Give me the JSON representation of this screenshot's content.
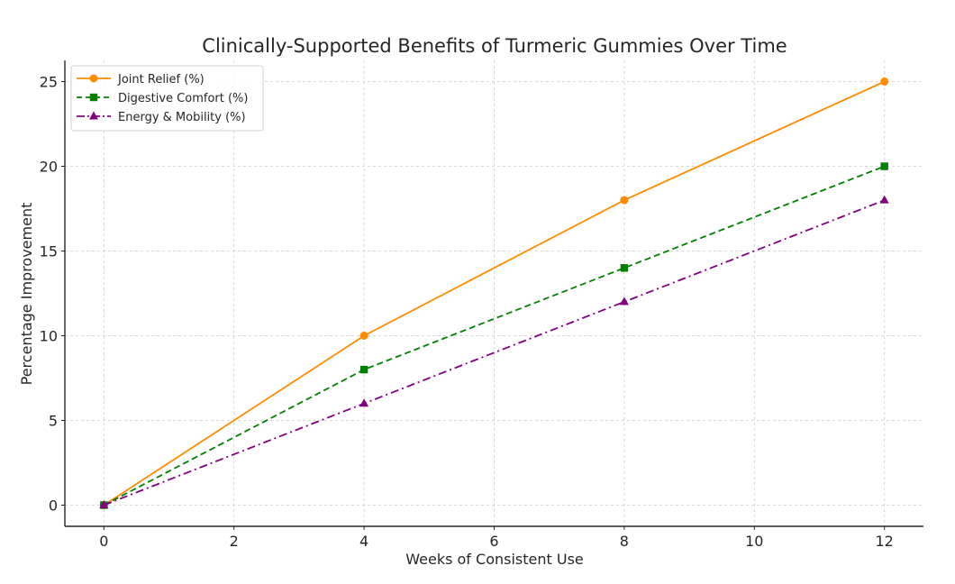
{
  "chart_data": {
    "type": "line",
    "title": "Clinically-Supported Benefits of Turmeric Gummies Over Time",
    "xlabel": "Weeks of Consistent Use",
    "ylabel": "Percentage Improvement",
    "x": [
      0,
      4,
      8,
      12
    ],
    "xlim": [
      -0.6,
      12.6
    ],
    "ylim": [
      -1.25,
      26.25
    ],
    "xticks": [
      0,
      2,
      4,
      6,
      8,
      10,
      12
    ],
    "yticks": [
      0,
      5,
      10,
      15,
      20,
      25
    ],
    "xtick_labels": [
      "0",
      "2",
      "4",
      "6",
      "8",
      "10",
      "12"
    ],
    "ytick_labels": [
      "0",
      "5",
      "10",
      "15",
      "20",
      "25"
    ],
    "grid": true,
    "legend_position": "top-left",
    "series": [
      {
        "name": "Joint Relief (%)",
        "values": [
          0,
          10,
          18,
          25
        ],
        "color": "#ff8c00",
        "linestyle": "solid",
        "marker": "circle"
      },
      {
        "name": "Digestive Comfort (%)",
        "values": [
          0,
          8,
          14,
          20
        ],
        "color": "#008000",
        "linestyle": "dashed",
        "marker": "square"
      },
      {
        "name": "Energy & Mobility (%)",
        "values": [
          0,
          6,
          12,
          18
        ],
        "color": "#800080",
        "linestyle": "dashdot",
        "marker": "triangle"
      }
    ]
  }
}
